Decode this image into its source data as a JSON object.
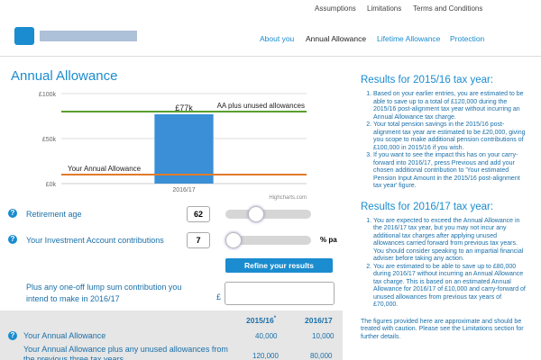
{
  "top_nav": [
    "Assumptions",
    "Limitations",
    "Terms and Conditions"
  ],
  "main_nav": [
    "About you",
    "Annual Allowance",
    "Lifetime Allowance",
    "Protection"
  ],
  "heading": "Annual Allowance",
  "chart": {
    "type": "bar",
    "categories": [
      "2016/17"
    ],
    "values": [
      77000
    ],
    "value_labels": [
      "£77k"
    ],
    "color": "#3a8fd6",
    "ylim": [
      0,
      100000
    ],
    "yticks": [
      {
        "value": 0,
        "label": "£0k"
      },
      {
        "value": 50000,
        "label": "£50k"
      },
      {
        "value": 100000,
        "label": "£100k"
      }
    ],
    "grid": true,
    "plot_lines": [
      {
        "label": "AA plus unused allowances",
        "value": 80000,
        "color": "#5a9e2f"
      },
      {
        "label": "Your Annual Allowance",
        "value": 10000,
        "color": "#e07b2a"
      }
    ],
    "credit": "Highcharts.com"
  },
  "inputs": [
    {
      "label": "Retirement age",
      "value": "62"
    },
    {
      "label": "Your Investment Account contributions",
      "value": "7",
      "unit": "% pa"
    }
  ],
  "button": "Refine your results",
  "lump_sum": {
    "label": "Plus any one-off lump sum contribution you intend to make in 2016/17",
    "currency": "£"
  },
  "table": {
    "header": [
      "2015/16",
      "2016/17"
    ],
    "header_note": "*",
    "rows": [
      [
        "Your Annual Allowance",
        "40,000",
        "10,000"
      ],
      [
        "Your Annual Allowance plus any unused allowances from the previous three tax years",
        "120,000",
        "80,000"
      ]
    ]
  },
  "results": [
    {
      "title": "Results for 2015/16 tax year:",
      "items": [
        "Based on your earlier entries, you are estimated to be able to save up to a total of £120,000 during the 2015/16 post-alignment tax year without incurring an Annual Allowance tax charge.",
        "Your total pension savings in the 2015/16 post-alignment tax year are estimated to be £20,000, giving you scope to make additional pension contributions of £100,000 in 2015/16 if you wish.",
        "If you want to see the impact this has on your carry-forward into 2016/17, press Previous and add your chosen additional contribution to 'Your estimated Pension Input Amount in the 2015/16 post-alignment tax year' figure."
      ]
    },
    {
      "title": "Results for 2016/17 tax year:",
      "items": [
        "You are expected to exceed the Annual Allowance in the 2016/17 tax year, but you may not incur any additional tax charges after applying unused allowances carried forward from previous tax years. You should consider speaking to an impartial financial adviser before taking any action.",
        "You are estimated to be able to save up to £80,000 during 2016/17 without incurring an Annual Allowance tax charge. This is based on an estimated Annual Allowance for 2016/17 of £10,000 and carry-forward of unused allowances from previous tax years of £70,000."
      ]
    }
  ],
  "footnote": "The figures provided here are approximate and should be treated with caution. Please see the Limitations section for further details."
}
